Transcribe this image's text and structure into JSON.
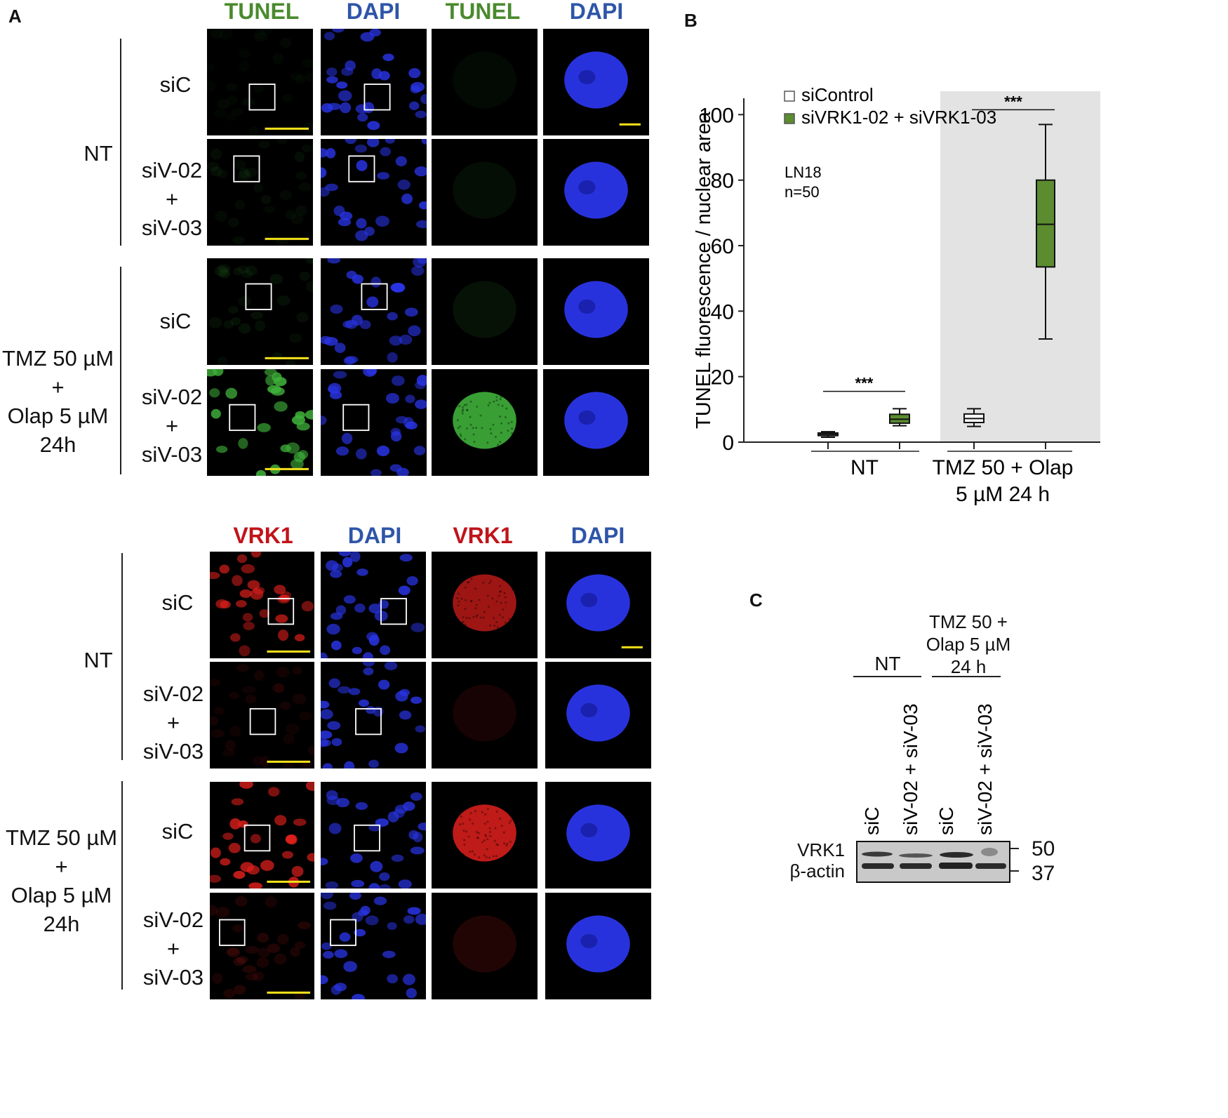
{
  "panels": {
    "a": "A",
    "b": "B",
    "c": "C"
  },
  "micro_top": {
    "headers": [
      {
        "text": "TUNEL",
        "color": "#4a8a2e"
      },
      {
        "text": "DAPI",
        "color": "#2e55a8"
      },
      {
        "text": "TUNEL",
        "color": "#4a8a2e"
      },
      {
        "text": "DAPI",
        "color": "#2e55a8"
      }
    ],
    "group1": "NT",
    "group2": [
      "TMZ 50 µM",
      "+",
      "Olap 5 µM",
      "24h"
    ],
    "row_sic": "siC",
    "row_siv": [
      "siV-02",
      "+",
      "siV-03"
    ]
  },
  "micro_bottom": {
    "headers": [
      {
        "text": "VRK1",
        "color": "#c0141b"
      },
      {
        "text": "DAPI",
        "color": "#2e55a8"
      },
      {
        "text": "VRK1",
        "color": "#c0141b"
      },
      {
        "text": "DAPI",
        "color": "#2e55a8"
      }
    ],
    "group1": "NT",
    "group2": [
      "TMZ 50 µM",
      "+",
      "Olap 5 µM",
      "24h"
    ],
    "row_sic": "siC",
    "row_siv": [
      "siV-02",
      "+",
      "siV-03"
    ]
  },
  "chart_data": {
    "type": "box",
    "ylabel": "TUNEL fluorescence / nuclear area",
    "ylim": [
      0,
      105
    ],
    "yticks": [
      0,
      20,
      40,
      60,
      80,
      100
    ],
    "legend": [
      {
        "label": "siControl",
        "color": "#ffffff"
      },
      {
        "label": "siVRK1-02 + siVRK1-03",
        "color": "#5b8c2f"
      }
    ],
    "annotation": [
      "LN18",
      "n=50"
    ],
    "groups": [
      {
        "label": [
          "NT"
        ]
      },
      {
        "label": [
          "TMZ 50 + Olap",
          "5 µM 24 h"
        ],
        "shaded": true
      }
    ],
    "boxes": [
      {
        "group": 0,
        "series": "siControl",
        "min": 1.5,
        "q1": 2.0,
        "median": 2.4,
        "q3": 2.8,
        "max": 3.2
      },
      {
        "group": 0,
        "series": "siVRK1-02 + siVRK1-03",
        "min": 5.0,
        "q1": 5.8,
        "median": 7.0,
        "q3": 8.5,
        "max": 10.2
      },
      {
        "group": 1,
        "series": "siControl",
        "min": 4.8,
        "q1": 6.0,
        "median": 7.2,
        "q3": 8.6,
        "max": 10.2
      },
      {
        "group": 1,
        "series": "siVRK1-02 + siVRK1-03",
        "min": 31.5,
        "q1": 53.5,
        "median": 66.5,
        "q3": 80.0,
        "max": 97.0
      }
    ],
    "significance": [
      "***",
      "***"
    ]
  },
  "blot": {
    "header_top": [
      "TMZ 50 +",
      "Olap 5 µM",
      "24 h"
    ],
    "header_nt": "NT",
    "lanes": [
      "siC",
      "siV-02 + siV-03",
      "siC",
      "siV-02 + siV-03"
    ],
    "rows": [
      "VRK1",
      "β-actin"
    ],
    "markers": [
      "50",
      "37"
    ]
  }
}
